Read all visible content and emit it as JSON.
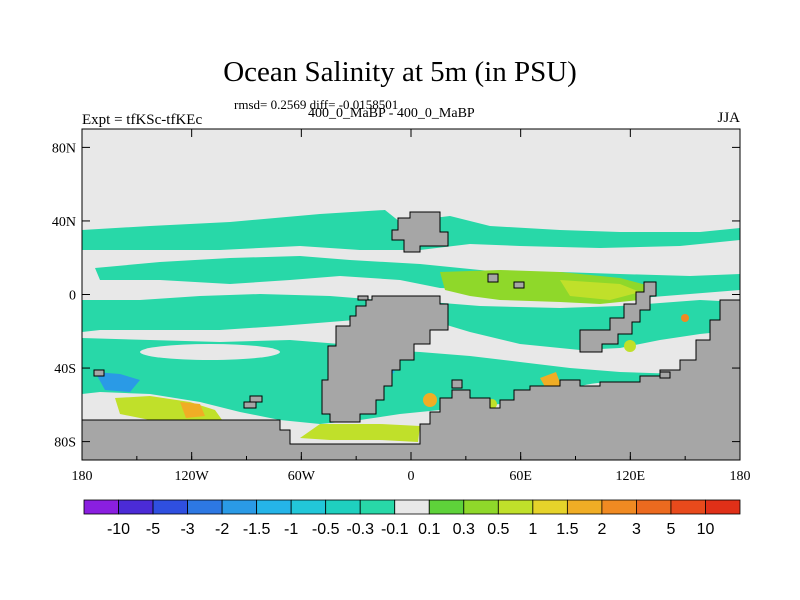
{
  "chart_data": {
    "type": "heatmap",
    "title": "Ocean Salinity at 5m (in PSU)",
    "subtitle": "400_0_MaBP - 400_0_MaBP",
    "stats": "rmsd= 0.2569 diff= -0.0158501",
    "left_label": "Expt = tfKSc-tfKEc",
    "right_label": "JJA",
    "x_ticks": [
      "180",
      "120W",
      "60W",
      "0",
      "60E",
      "120E",
      "180"
    ],
    "y_ticks": [
      "80N",
      "40N",
      "0",
      "40S",
      "80S"
    ],
    "colorbar": {
      "labels": [
        "-10",
        "-5",
        "-3",
        "-2",
        "-1.5",
        "-1",
        "-0.5",
        "-0.3",
        "-0.1",
        "0.1",
        "0.3",
        "0.5",
        "1",
        "1.5",
        "2",
        "3",
        "5",
        "10"
      ],
      "colors": [
        "#8a1fe0",
        "#4b2bd6",
        "#2f4fe0",
        "#2d78e3",
        "#2a9ae6",
        "#25b4e8",
        "#22c7d9",
        "#1fd0bf",
        "#28d8a8",
        "#e8e8e8",
        "#5ed23a",
        "#8fd82a",
        "#c0e02a",
        "#e6d32a",
        "#f0ad25",
        "#f08a22",
        "#ec6a1f",
        "#e84a1c",
        "#e03018"
      ]
    },
    "colors": {
      "land": "#a6a6a6",
      "neutral": "#e8e8e8",
      "negative": "#28d8a8",
      "positive_fresh": "#8fd82a",
      "positive_salty": "#f08a22"
    }
  }
}
